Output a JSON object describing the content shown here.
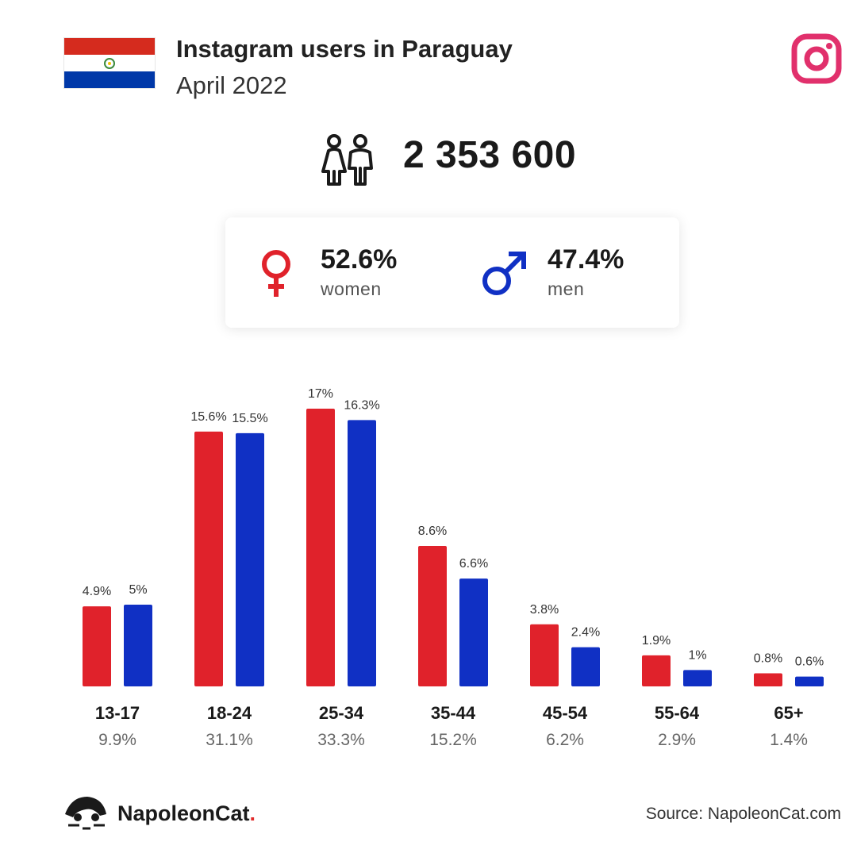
{
  "header": {
    "title": "Instagram users in Paraguay",
    "subtitle": "April 2022"
  },
  "flag": {
    "top_color": "#d52b1e",
    "middle_color": "#ffffff",
    "bottom_color": "#0038a8"
  },
  "total_users": "2 353 600",
  "gender": {
    "women": {
      "value": "52.6%",
      "label": "women",
      "color": "#e0222b"
    },
    "men": {
      "value": "47.4%",
      "label": "men",
      "color": "#1030c4"
    }
  },
  "icons": {
    "brand_logo": "instagram-icon",
    "users": "people-icon",
    "women": "female-symbol-icon",
    "men": "male-symbol-icon",
    "footer_logo": "napoleoncat-logo"
  },
  "chart_data": {
    "type": "bar",
    "categories": [
      "13-17",
      "18-24",
      "25-34",
      "35-44",
      "45-54",
      "55-64",
      "65+"
    ],
    "category_totals": [
      "9.9%",
      "31.1%",
      "33.3%",
      "15.2%",
      "6.2%",
      "2.9%",
      "1.4%"
    ],
    "series": [
      {
        "name": "women",
        "color": "#e0222b",
        "values": [
          4.9,
          15.6,
          17,
          8.6,
          3.8,
          1.9,
          0.8
        ],
        "labels": [
          "4.9%",
          "15.6%",
          "17%",
          "8.6%",
          "3.8%",
          "1.9%",
          "0.8%"
        ]
      },
      {
        "name": "men",
        "color": "#1030c4",
        "values": [
          5,
          15.5,
          16.3,
          6.6,
          2.4,
          1,
          0.6
        ],
        "labels": [
          "5%",
          "15.5%",
          "16.3%",
          "6.6%",
          "2.4%",
          "1%",
          "0.6%"
        ]
      }
    ],
    "ylim": [
      0,
      17
    ],
    "grid": false,
    "legend": "none"
  },
  "footer": {
    "brand": "NapoleonCat",
    "brand_dot": ".",
    "source": "Source: NapoleonCat.com"
  }
}
